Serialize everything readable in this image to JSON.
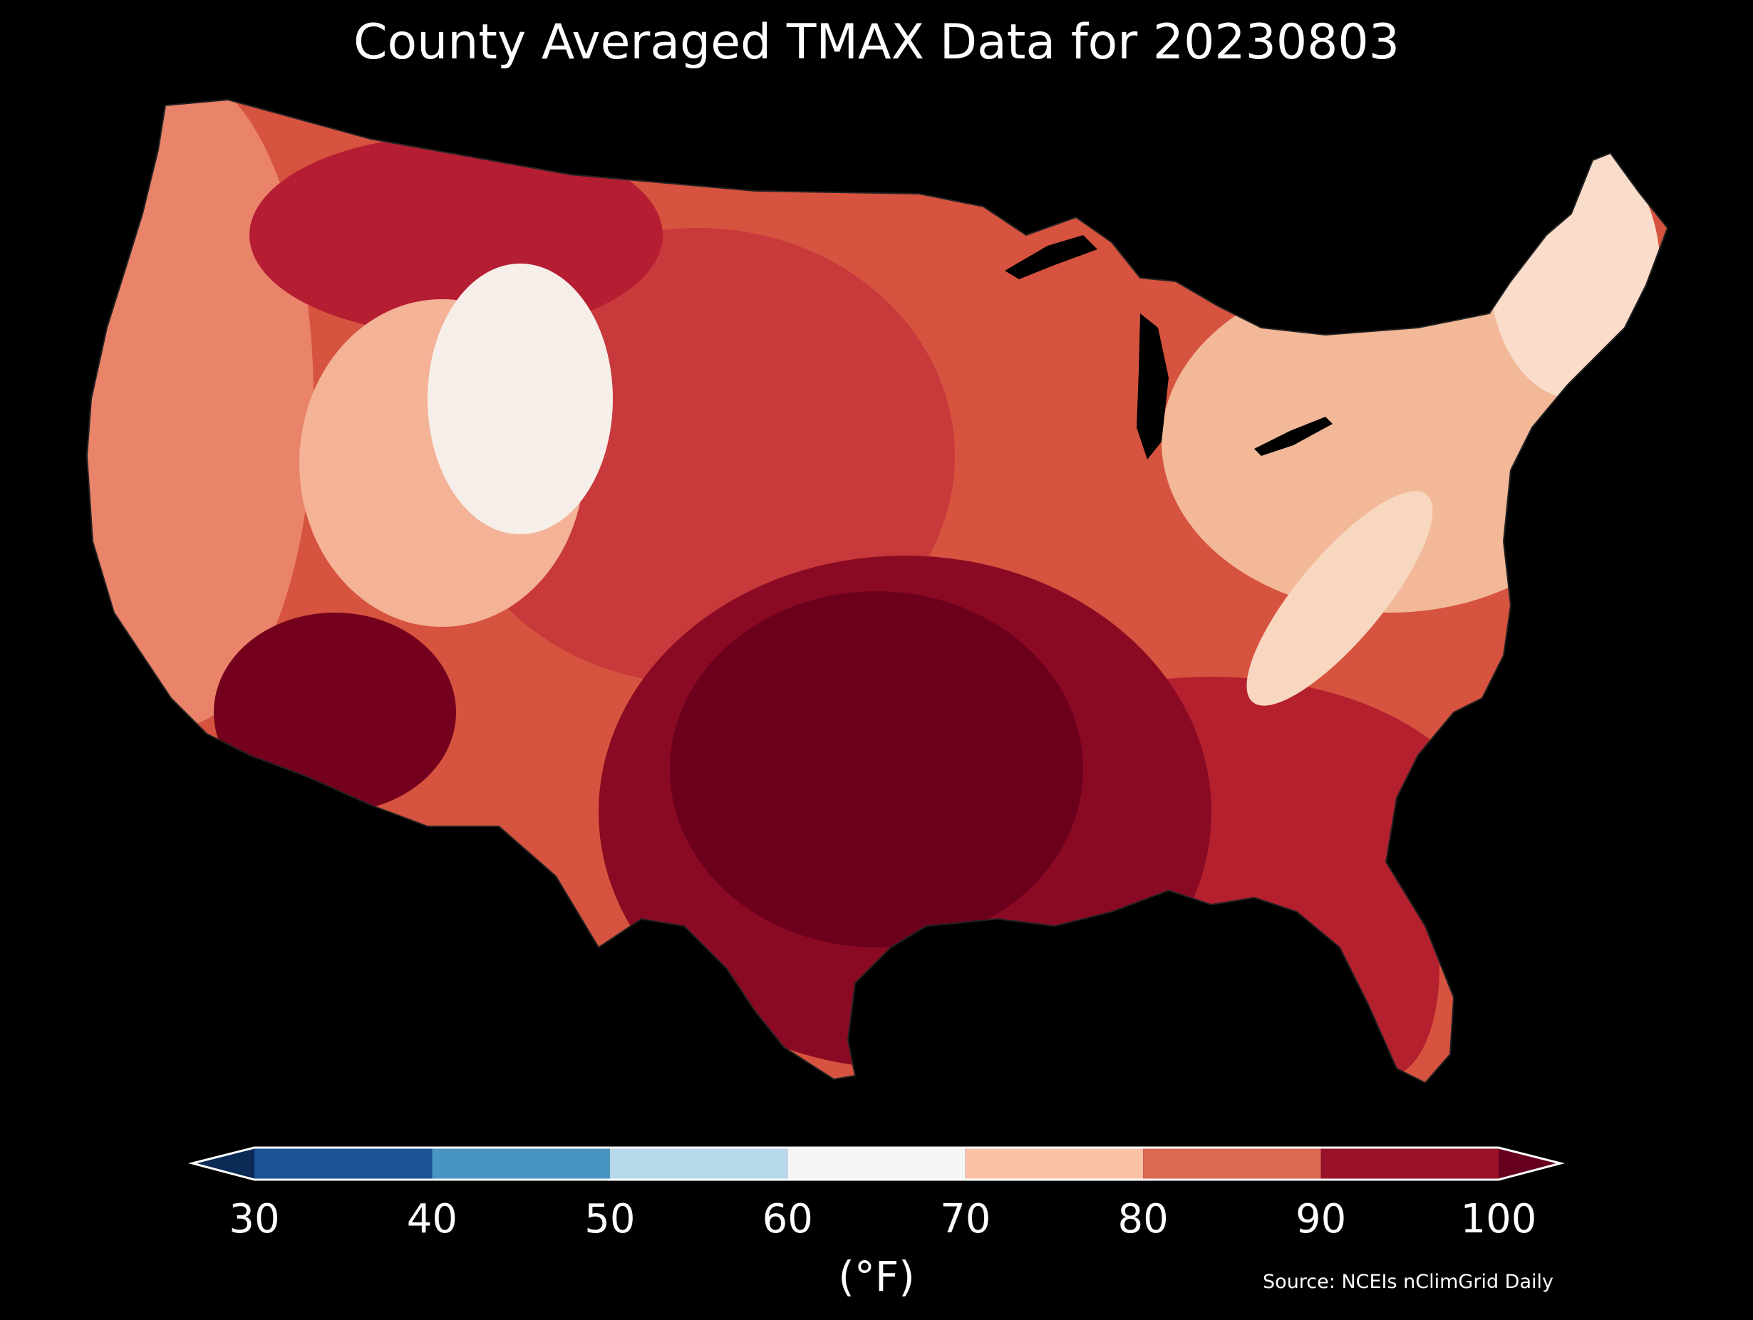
{
  "title": "County Averaged TMAX Data for 20230803",
  "colorbar": {
    "unit_label": "(°F)",
    "ticks": [
      "30",
      "40",
      "50",
      "60",
      "70",
      "80",
      "90",
      "100"
    ],
    "under_color": "#0b2a55",
    "over_color": "#67001f",
    "bins": [
      {
        "range": [
          30,
          40
        ],
        "color": "#1b5496"
      },
      {
        "range": [
          40,
          50
        ],
        "color": "#4895c4"
      },
      {
        "range": [
          50,
          60
        ],
        "color": "#b6d8ea"
      },
      {
        "range": [
          60,
          70
        ],
        "color": "#f5f5f5"
      },
      {
        "range": [
          70,
          80
        ],
        "color": "#f9c2a6"
      },
      {
        "range": [
          80,
          90
        ],
        "color": "#dc6a52"
      },
      {
        "range": [
          90,
          100
        ],
        "color": "#99122a"
      }
    ]
  },
  "map": {
    "background": "#000000",
    "region_colors": {
      "desert_southwest": "#74001d",
      "texas_core": "#6c001c",
      "texas_outer": "#8a0a24",
      "southeast": "#b5202f",
      "plains": "#c8393c",
      "midwest": "#d6533f",
      "northeast": "#f2b898",
      "new_england_north": "#f9dcca",
      "rockies_cool": "#f6efe9",
      "rockies_warm": "#f4b296",
      "pacific_coast": "#e9836a",
      "northern_rockies": "#b51d33",
      "appalachians": "#f8d7c0"
    }
  },
  "source_text": "Source: NCEIs nClimGrid Daily"
}
